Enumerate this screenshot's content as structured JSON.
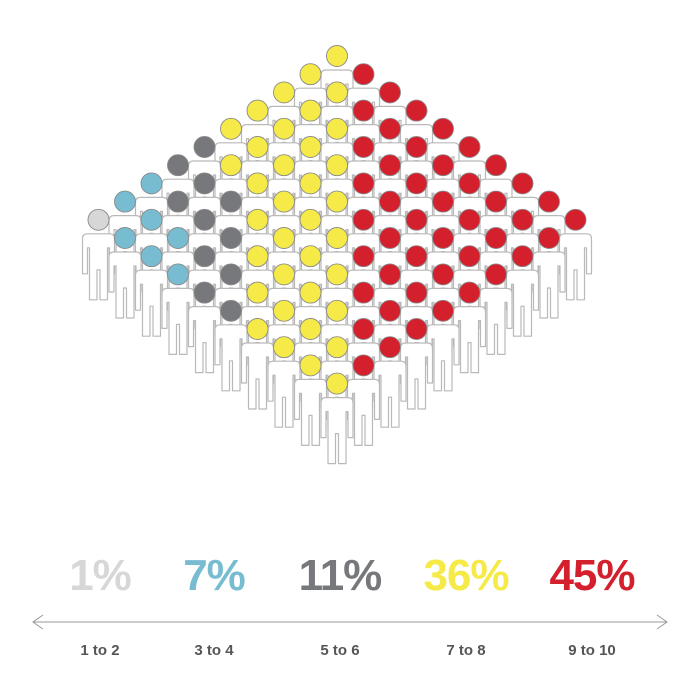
{
  "chart_data": {
    "type": "pictogram",
    "categories": [
      "1 to 2",
      "3 to 4",
      "5 to 6",
      "7 to 8",
      "9 to 10"
    ],
    "values": [
      1,
      7,
      11,
      36,
      45
    ],
    "value_labels": [
      "1%",
      "7%",
      "11%",
      "36%",
      "45%"
    ],
    "colors": [
      "#d7d7d7",
      "#78bcd2",
      "#77787b",
      "#f5ea48",
      "#d41f2d"
    ],
    "total_people": 100,
    "grid": false,
    "legend": "none",
    "axis": "double-arrow"
  }
}
